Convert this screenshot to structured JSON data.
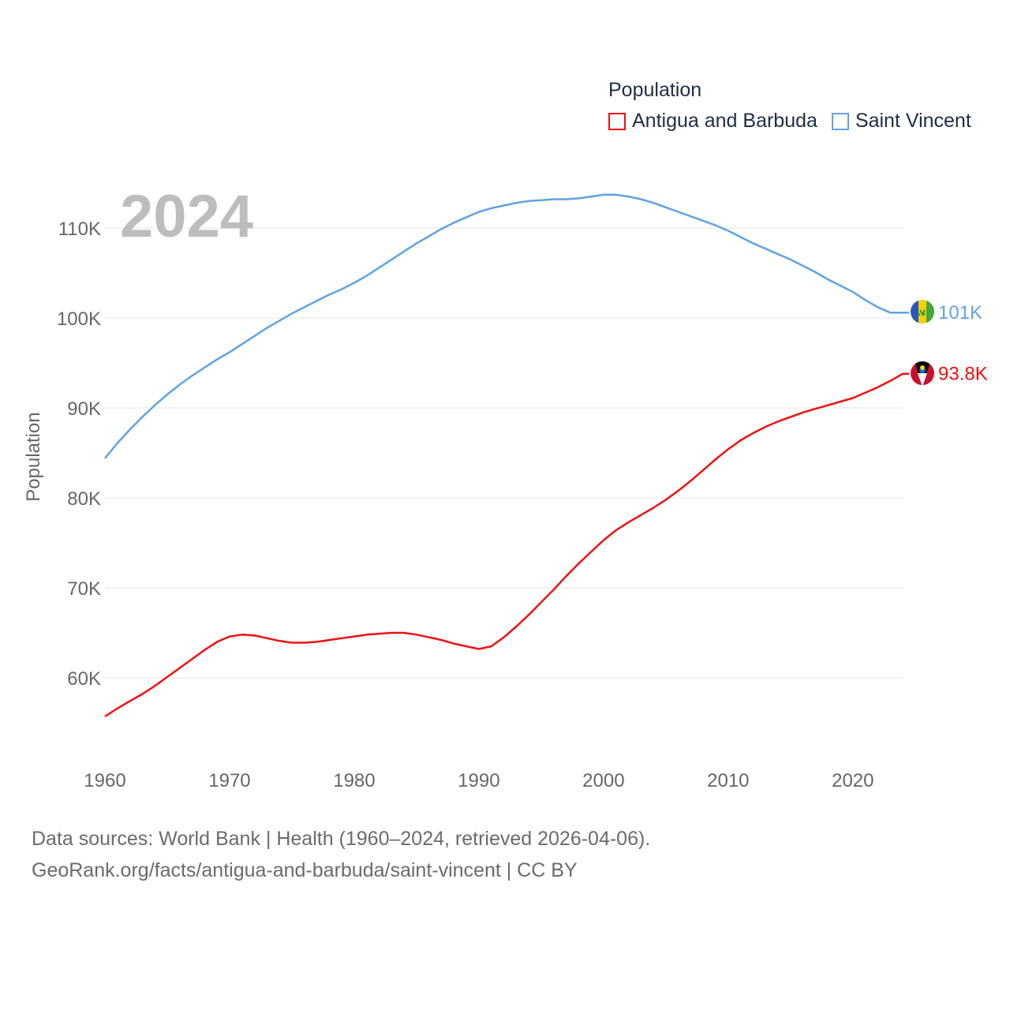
{
  "legend": {
    "title": "Population",
    "items": [
      {
        "label": "Antigua and Barbuda",
        "color": "#ee1111"
      },
      {
        "label": "Saint Vincent",
        "color": "#5fa3e4"
      }
    ]
  },
  "footer": {
    "line1": "Data sources: World Bank | Health (1960–2024, retrieved 2026-04-06).",
    "line2": "GeoRank.org/facts/antigua-and-barbuda/saint-vincent | CC BY"
  },
  "chart_data": {
    "type": "line",
    "title": "Population",
    "year_label": "2024",
    "ylabel": "Population",
    "xlabel": "",
    "xlim": [
      1960,
      2024
    ],
    "ylim": [
      52000,
      118000
    ],
    "x_ticks": [
      1960,
      1970,
      1980,
      1990,
      2000,
      2010,
      2020
    ],
    "y_ticks": [
      {
        "value": 60000,
        "label": "60K"
      },
      {
        "value": 70000,
        "label": "70K"
      },
      {
        "value": 80000,
        "label": "80K"
      },
      {
        "value": 90000,
        "label": "90K"
      },
      {
        "value": 100000,
        "label": "100K"
      },
      {
        "value": 110000,
        "label": "110K"
      }
    ],
    "grid": true,
    "series": [
      {
        "name": "Antigua and Barbuda",
        "color": "#ee1111",
        "end_label": "93.8K",
        "x": [
          1960,
          1961,
          1962,
          1963,
          1964,
          1965,
          1966,
          1967,
          1968,
          1969,
          1970,
          1971,
          1972,
          1973,
          1974,
          1975,
          1976,
          1977,
          1978,
          1979,
          1980,
          1981,
          1982,
          1983,
          1984,
          1985,
          1986,
          1987,
          1988,
          1989,
          1990,
          1991,
          1992,
          1993,
          1994,
          1995,
          1996,
          1997,
          1998,
          1999,
          2000,
          2001,
          2002,
          2003,
          2004,
          2005,
          2006,
          2007,
          2008,
          2009,
          2010,
          2011,
          2012,
          2013,
          2014,
          2015,
          2016,
          2017,
          2018,
          2019,
          2020,
          2021,
          2022,
          2023,
          2024
        ],
        "values": [
          55700,
          56600,
          57400,
          58200,
          59100,
          60100,
          61100,
          62100,
          63100,
          64000,
          64600,
          64800,
          64700,
          64400,
          64100,
          63900,
          63900,
          64000,
          64200,
          64400,
          64600,
          64800,
          64900,
          65000,
          65000,
          64800,
          64500,
          64200,
          63800,
          63500,
          63200,
          63500,
          64500,
          65700,
          67000,
          68400,
          69800,
          71300,
          72700,
          74000,
          75300,
          76400,
          77300,
          78100,
          78900,
          79800,
          80800,
          81900,
          83100,
          84300,
          85400,
          86400,
          87200,
          87900,
          88500,
          89000,
          89500,
          89900,
          90300,
          90700,
          91100,
          91700,
          92300,
          93000,
          93800
        ]
      },
      {
        "name": "Saint Vincent",
        "color": "#5fa3e4",
        "end_label": "101K",
        "x": [
          1960,
          1961,
          1962,
          1963,
          1964,
          1965,
          1966,
          1967,
          1968,
          1969,
          1970,
          1971,
          1972,
          1973,
          1974,
          1975,
          1976,
          1977,
          1978,
          1979,
          1980,
          1981,
          1982,
          1983,
          1984,
          1985,
          1986,
          1987,
          1988,
          1989,
          1990,
          1991,
          1992,
          1993,
          1994,
          1995,
          1996,
          1997,
          1998,
          1999,
          2000,
          2001,
          2002,
          2003,
          2004,
          2005,
          2006,
          2007,
          2008,
          2009,
          2010,
          2011,
          2012,
          2013,
          2014,
          2015,
          2016,
          2017,
          2018,
          2019,
          2020,
          2021,
          2022,
          2023,
          2024
        ],
        "values": [
          84400,
          86100,
          87600,
          89000,
          90300,
          91500,
          92600,
          93600,
          94500,
          95400,
          96200,
          97100,
          98000,
          98900,
          99700,
          100500,
          101200,
          101900,
          102600,
          103200,
          103900,
          104700,
          105600,
          106500,
          107400,
          108300,
          109100,
          109900,
          110600,
          111200,
          111800,
          112200,
          112500,
          112800,
          113000,
          113100,
          113200,
          113200,
          113300,
          113500,
          113700,
          113700,
          113500,
          113200,
          112800,
          112300,
          111800,
          111300,
          110800,
          110300,
          109700,
          109000,
          108300,
          107700,
          107100,
          106500,
          105800,
          105100,
          104300,
          103600,
          102900,
          102000,
          101200,
          100600,
          100600
        ]
      }
    ]
  }
}
